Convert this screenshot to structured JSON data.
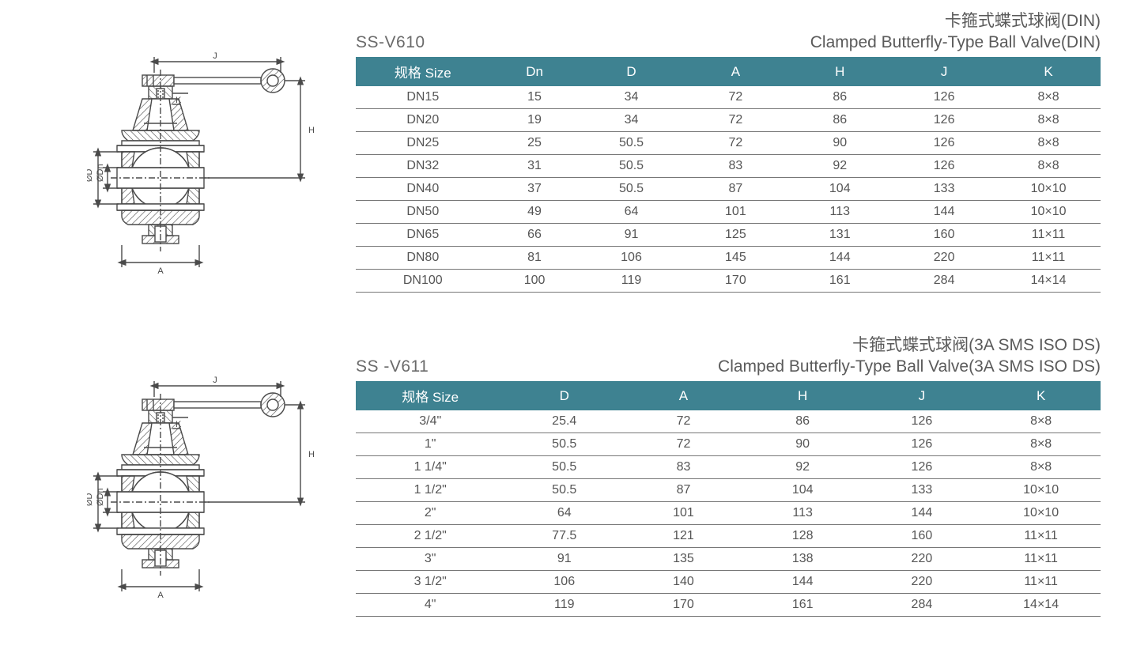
{
  "colors": {
    "header_bg": "#3e8291",
    "header_text": "#ffffff",
    "body_text": "#555555",
    "title_text": "#5a5a5a",
    "row_border": "#777777",
    "diagram_stroke": "#4a4a4a",
    "hatch": "#4a4a4a"
  },
  "typography": {
    "title_fontsize": 21,
    "header_fontsize": 17,
    "cell_fontsize": 16,
    "diagram_label_fontsize": 11
  },
  "diagram": {
    "labels": {
      "J": "J",
      "K": "K",
      "H": "H",
      "A": "A",
      "D": "ØD",
      "Dn": "ØDn"
    }
  },
  "sections": [
    {
      "model": "SS-V610",
      "title_cn": "卡箍式蝶式球阀(DIN)",
      "title_en": "Clamped Butterfly-Type Ball Valve(DIN)",
      "columns": [
        "规格 Size",
        "Dn",
        "D",
        "A",
        "H",
        "J",
        "K"
      ],
      "col_widths": [
        "18%",
        "12%",
        "14%",
        "14%",
        "14%",
        "14%",
        "14%"
      ],
      "rows": [
        [
          "DN15",
          "15",
          "34",
          "72",
          "86",
          "126",
          "8×8"
        ],
        [
          "DN20",
          "19",
          "34",
          "72",
          "86",
          "126",
          "8×8"
        ],
        [
          "DN25",
          "25",
          "50.5",
          "72",
          "90",
          "126",
          "8×8"
        ],
        [
          "DN32",
          "31",
          "50.5",
          "83",
          "92",
          "126",
          "8×8"
        ],
        [
          "DN40",
          "37",
          "50.5",
          "87",
          "104",
          "133",
          "10×10"
        ],
        [
          "DN50",
          "49",
          "64",
          "101",
          "113",
          "144",
          "10×10"
        ],
        [
          "DN65",
          "66",
          "91",
          "125",
          "131",
          "160",
          "11×11"
        ],
        [
          "DN80",
          "81",
          "106",
          "145",
          "144",
          "220",
          "11×11"
        ],
        [
          "DN100",
          "100",
          "119",
          "170",
          "161",
          "284",
          "14×14"
        ]
      ]
    },
    {
      "model": "SS -V611",
      "title_cn": "卡箍式蝶式球阀(3A SMS ISO DS)",
      "title_en": "Clamped Butterfly-Type Ball Valve(3A SMS ISO DS)",
      "columns": [
        "规格 Size",
        "D",
        "A",
        "H",
        "J",
        "K"
      ],
      "col_widths": [
        "20%",
        "16%",
        "16%",
        "16%",
        "16%",
        "16%"
      ],
      "rows": [
        [
          "3/4\"",
          "25.4",
          "72",
          "86",
          "126",
          "8×8"
        ],
        [
          "1\"",
          "50.5",
          "72",
          "90",
          "126",
          "8×8"
        ],
        [
          "1 1/4\"",
          "50.5",
          "83",
          "92",
          "126",
          "8×8"
        ],
        [
          "1 1/2\"",
          "50.5",
          "87",
          "104",
          "133",
          "10×10"
        ],
        [
          "2\"",
          "64",
          "101",
          "113",
          "144",
          "10×10"
        ],
        [
          "2 1/2\"",
          "77.5",
          "121",
          "128",
          "160",
          "11×11"
        ],
        [
          "3\"",
          "91",
          "135",
          "138",
          "220",
          "11×11"
        ],
        [
          "3 1/2\"",
          "106",
          "140",
          "144",
          "220",
          "11×11"
        ],
        [
          "4\"",
          "119",
          "170",
          "161",
          "284",
          "14×14"
        ]
      ]
    }
  ]
}
